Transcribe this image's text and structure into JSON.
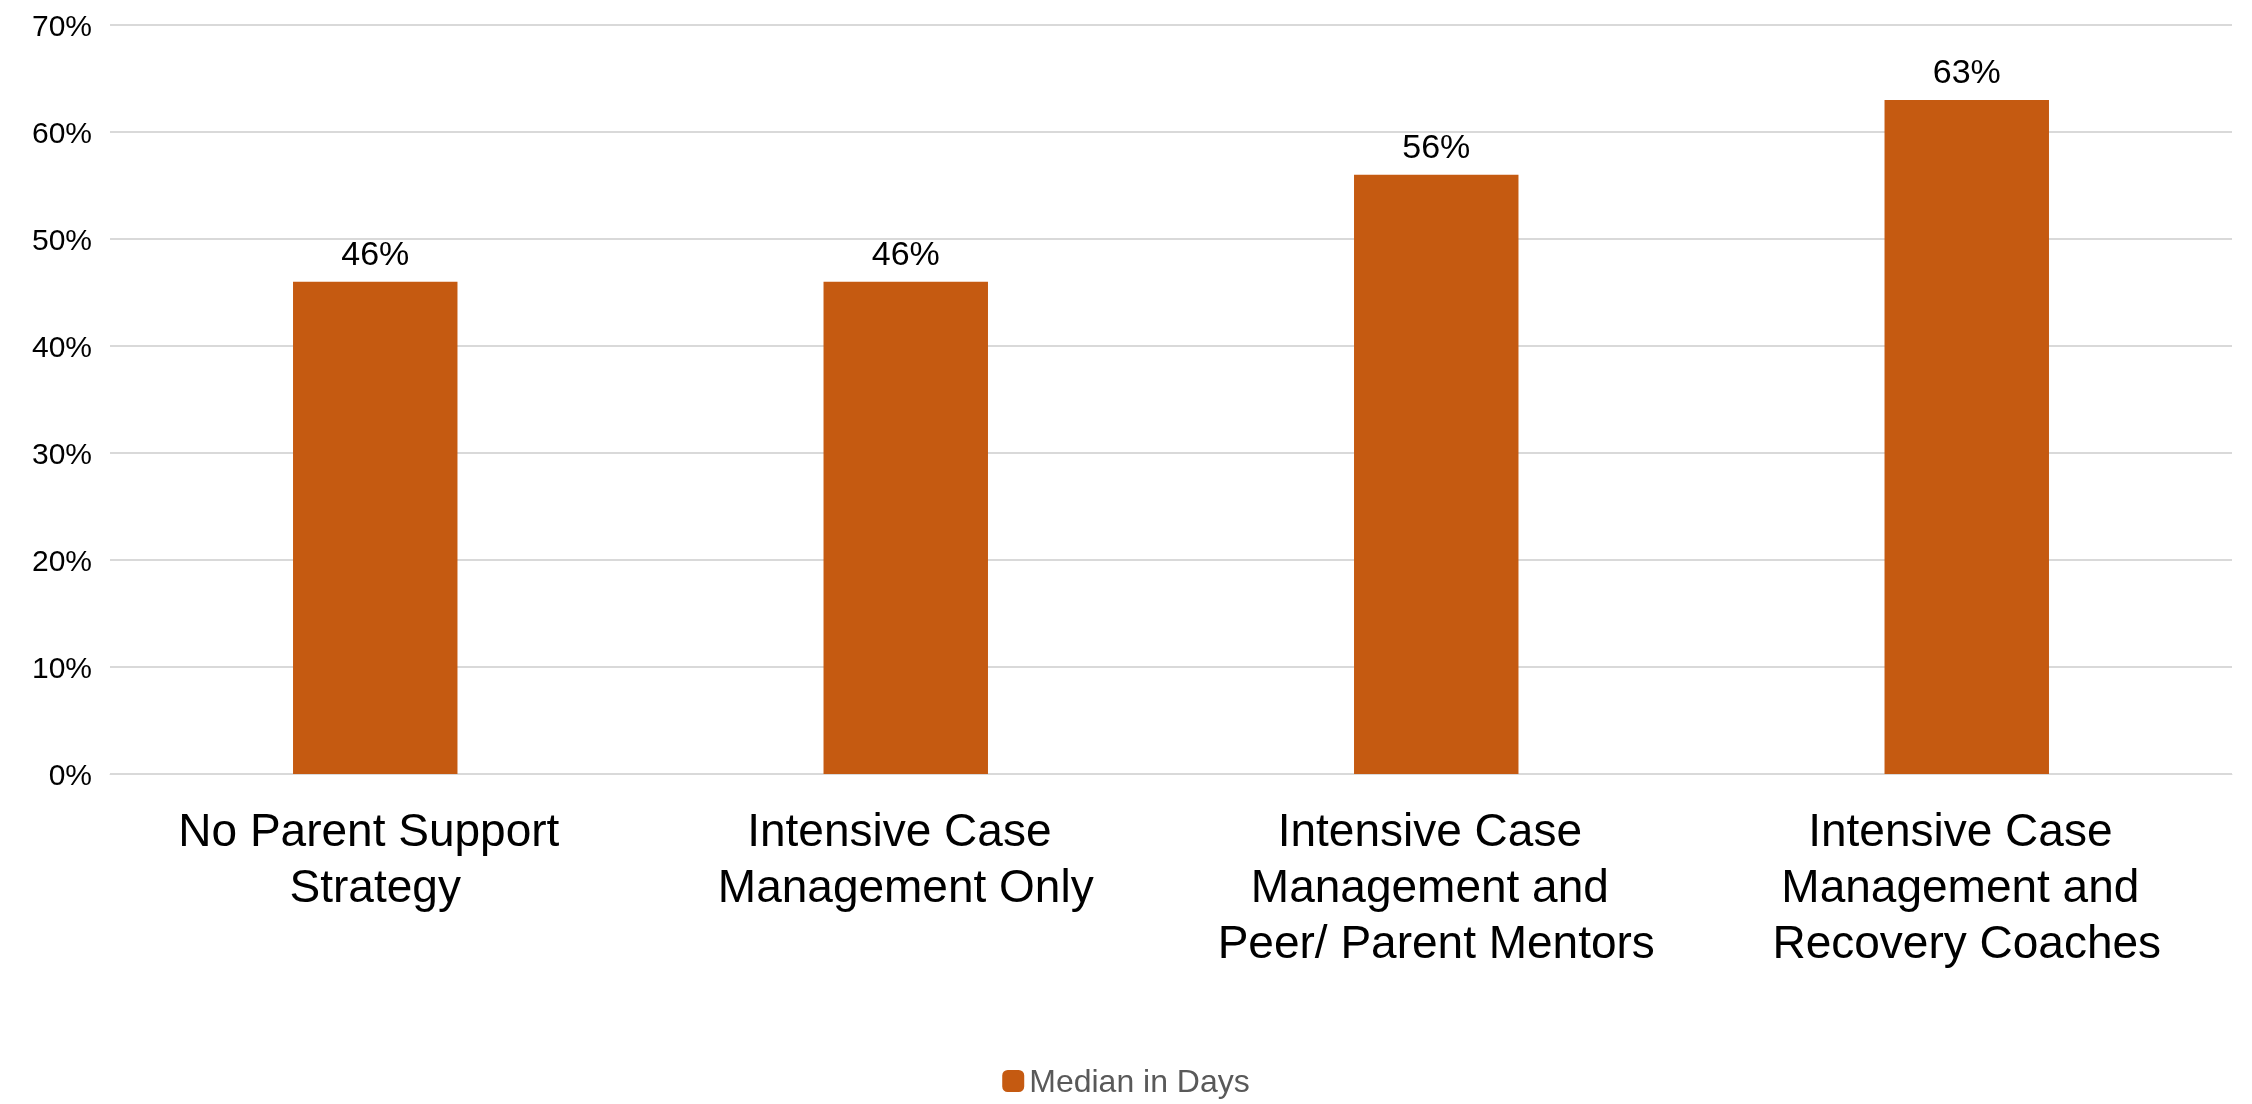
{
  "chart_data": {
    "type": "bar",
    "categories": [
      "No Parent Support Strategy",
      "Intensive Case Management Only",
      "Intensive Case Management and Peer/ Parent Mentors",
      "Intensive Case Management and Recovery Coaches"
    ],
    "series": [
      {
        "name": "Median in Days",
        "color": "#c55a11",
        "values": [
          46,
          46,
          56,
          63
        ],
        "value_labels": [
          "46%",
          "46%",
          "56%",
          "63%"
        ]
      }
    ],
    "ylim": [
      0,
      70
    ],
    "yticks": [
      {
        "value": 0,
        "label": "0%"
      },
      {
        "value": 10,
        "label": "10%"
      },
      {
        "value": 20,
        "label": "20%"
      },
      {
        "value": 30,
        "label": "30%"
      },
      {
        "value": 40,
        "label": "40%"
      },
      {
        "value": 50,
        "label": "50%"
      },
      {
        "value": 60,
        "label": "60%"
      },
      {
        "value": 70,
        "label": "70%"
      }
    ],
    "grid": "y",
    "legend": "bottom"
  }
}
